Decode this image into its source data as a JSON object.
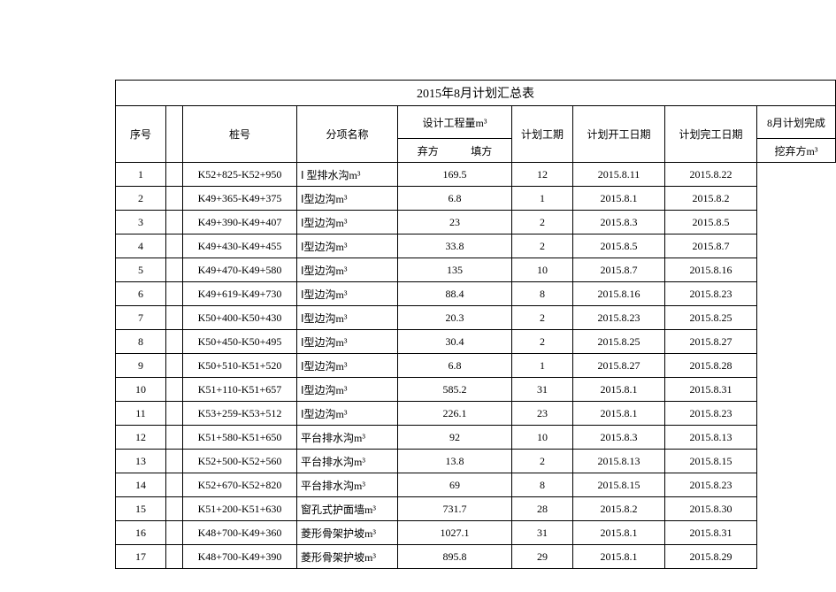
{
  "title": "2015年8月计划汇总表",
  "headers": {
    "seq": "序号",
    "stake": "桩号",
    "item": "分项名称",
    "design": "设计工程量m³",
    "design_sub_a": "弃方",
    "design_sub_b": "填方",
    "period": "计划工期",
    "start": "计划开工日期",
    "end": "计划完工日期",
    "plan": "8月计划完成",
    "plan_sub": "挖弃方m³"
  },
  "rows": [
    {
      "seq": "1",
      "stake": "K52+825-K52+950",
      "item": "Ⅰ 型排水沟m³",
      "design": "169.5",
      "period": "12",
      "start": "2015.8.11",
      "end": "2015.8.22"
    },
    {
      "seq": "2",
      "stake": "K49+365-K49+375",
      "item": "Ⅰ型边沟m³",
      "design": "6.8",
      "period": "1",
      "start": "2015.8.1",
      "end": "2015.8.2"
    },
    {
      "seq": "3",
      "stake": "K49+390-K49+407",
      "item": "Ⅰ型边沟m³",
      "design": "23",
      "period": "2",
      "start": "2015.8.3",
      "end": "2015.8.5"
    },
    {
      "seq": "4",
      "stake": "K49+430-K49+455",
      "item": "Ⅰ型边沟m³",
      "design": "33.8",
      "period": "2",
      "start": "2015.8.5",
      "end": "2015.8.7"
    },
    {
      "seq": "5",
      "stake": "K49+470-K49+580",
      "item": "Ⅰ型边沟m³",
      "design": "135",
      "period": "10",
      "start": "2015.8.7",
      "end": "2015.8.16"
    },
    {
      "seq": "6",
      "stake": "K49+619-K49+730",
      "item": "Ⅰ型边沟m³",
      "design": "88.4",
      "period": "8",
      "start": "2015.8.16",
      "end": "2015.8.23"
    },
    {
      "seq": "7",
      "stake": "K50+400-K50+430",
      "item": "Ⅰ型边沟m³",
      "design": "20.3",
      "period": "2",
      "start": "2015.8.23",
      "end": "2015.8.25"
    },
    {
      "seq": "8",
      "stake": "K50+450-K50+495",
      "item": "Ⅰ型边沟m³",
      "design": "30.4",
      "period": "2",
      "start": "2015.8.25",
      "end": "2015.8.27"
    },
    {
      "seq": "9",
      "stake": "K50+510-K51+520",
      "item": "Ⅰ型边沟m³",
      "design": "6.8",
      "period": "1",
      "start": "2015.8.27",
      "end": "2015.8.28"
    },
    {
      "seq": "10",
      "stake": "K51+110-K51+657",
      "item": "Ⅰ型边沟m³",
      "design": "585.2",
      "period": "31",
      "start": "2015.8.1",
      "end": "2015.8.31"
    },
    {
      "seq": "11",
      "stake": "K53+259-K53+512",
      "item": "Ⅰ型边沟m³",
      "design": "226.1",
      "period": "23",
      "start": "2015.8.1",
      "end": "2015.8.23"
    },
    {
      "seq": "12",
      "stake": "K51+580-K51+650",
      "item": "平台排水沟m³",
      "design": "92",
      "period": "10",
      "start": "2015.8.3",
      "end": "2015.8.13"
    },
    {
      "seq": "13",
      "stake": "K52+500-K52+560",
      "item": "平台排水沟m³",
      "design": "13.8",
      "period": "2",
      "start": "2015.8.13",
      "end": "2015.8.15"
    },
    {
      "seq": "14",
      "stake": "K52+670-K52+820",
      "item": "平台排水沟m³",
      "design": "69",
      "period": "8",
      "start": "2015.8.15",
      "end": "2015.8.23"
    },
    {
      "seq": "15",
      "stake": "K51+200-K51+630",
      "item": "窗孔式护面墙m³",
      "design": "731.7",
      "period": "28",
      "start": "2015.8.2",
      "end": "2015.8.30"
    },
    {
      "seq": "16",
      "stake": "K48+700-K49+360",
      "item": "菱形骨架护坡m³",
      "design": "1027.1",
      "period": "31",
      "start": "2015.8.1",
      "end": "2015.8.31"
    },
    {
      "seq": "17",
      "stake": "K48+700-K49+390",
      "item": "菱形骨架护坡m³",
      "design": "895.8",
      "period": "29",
      "start": "2015.8.1",
      "end": "2015.8.29"
    }
  ]
}
